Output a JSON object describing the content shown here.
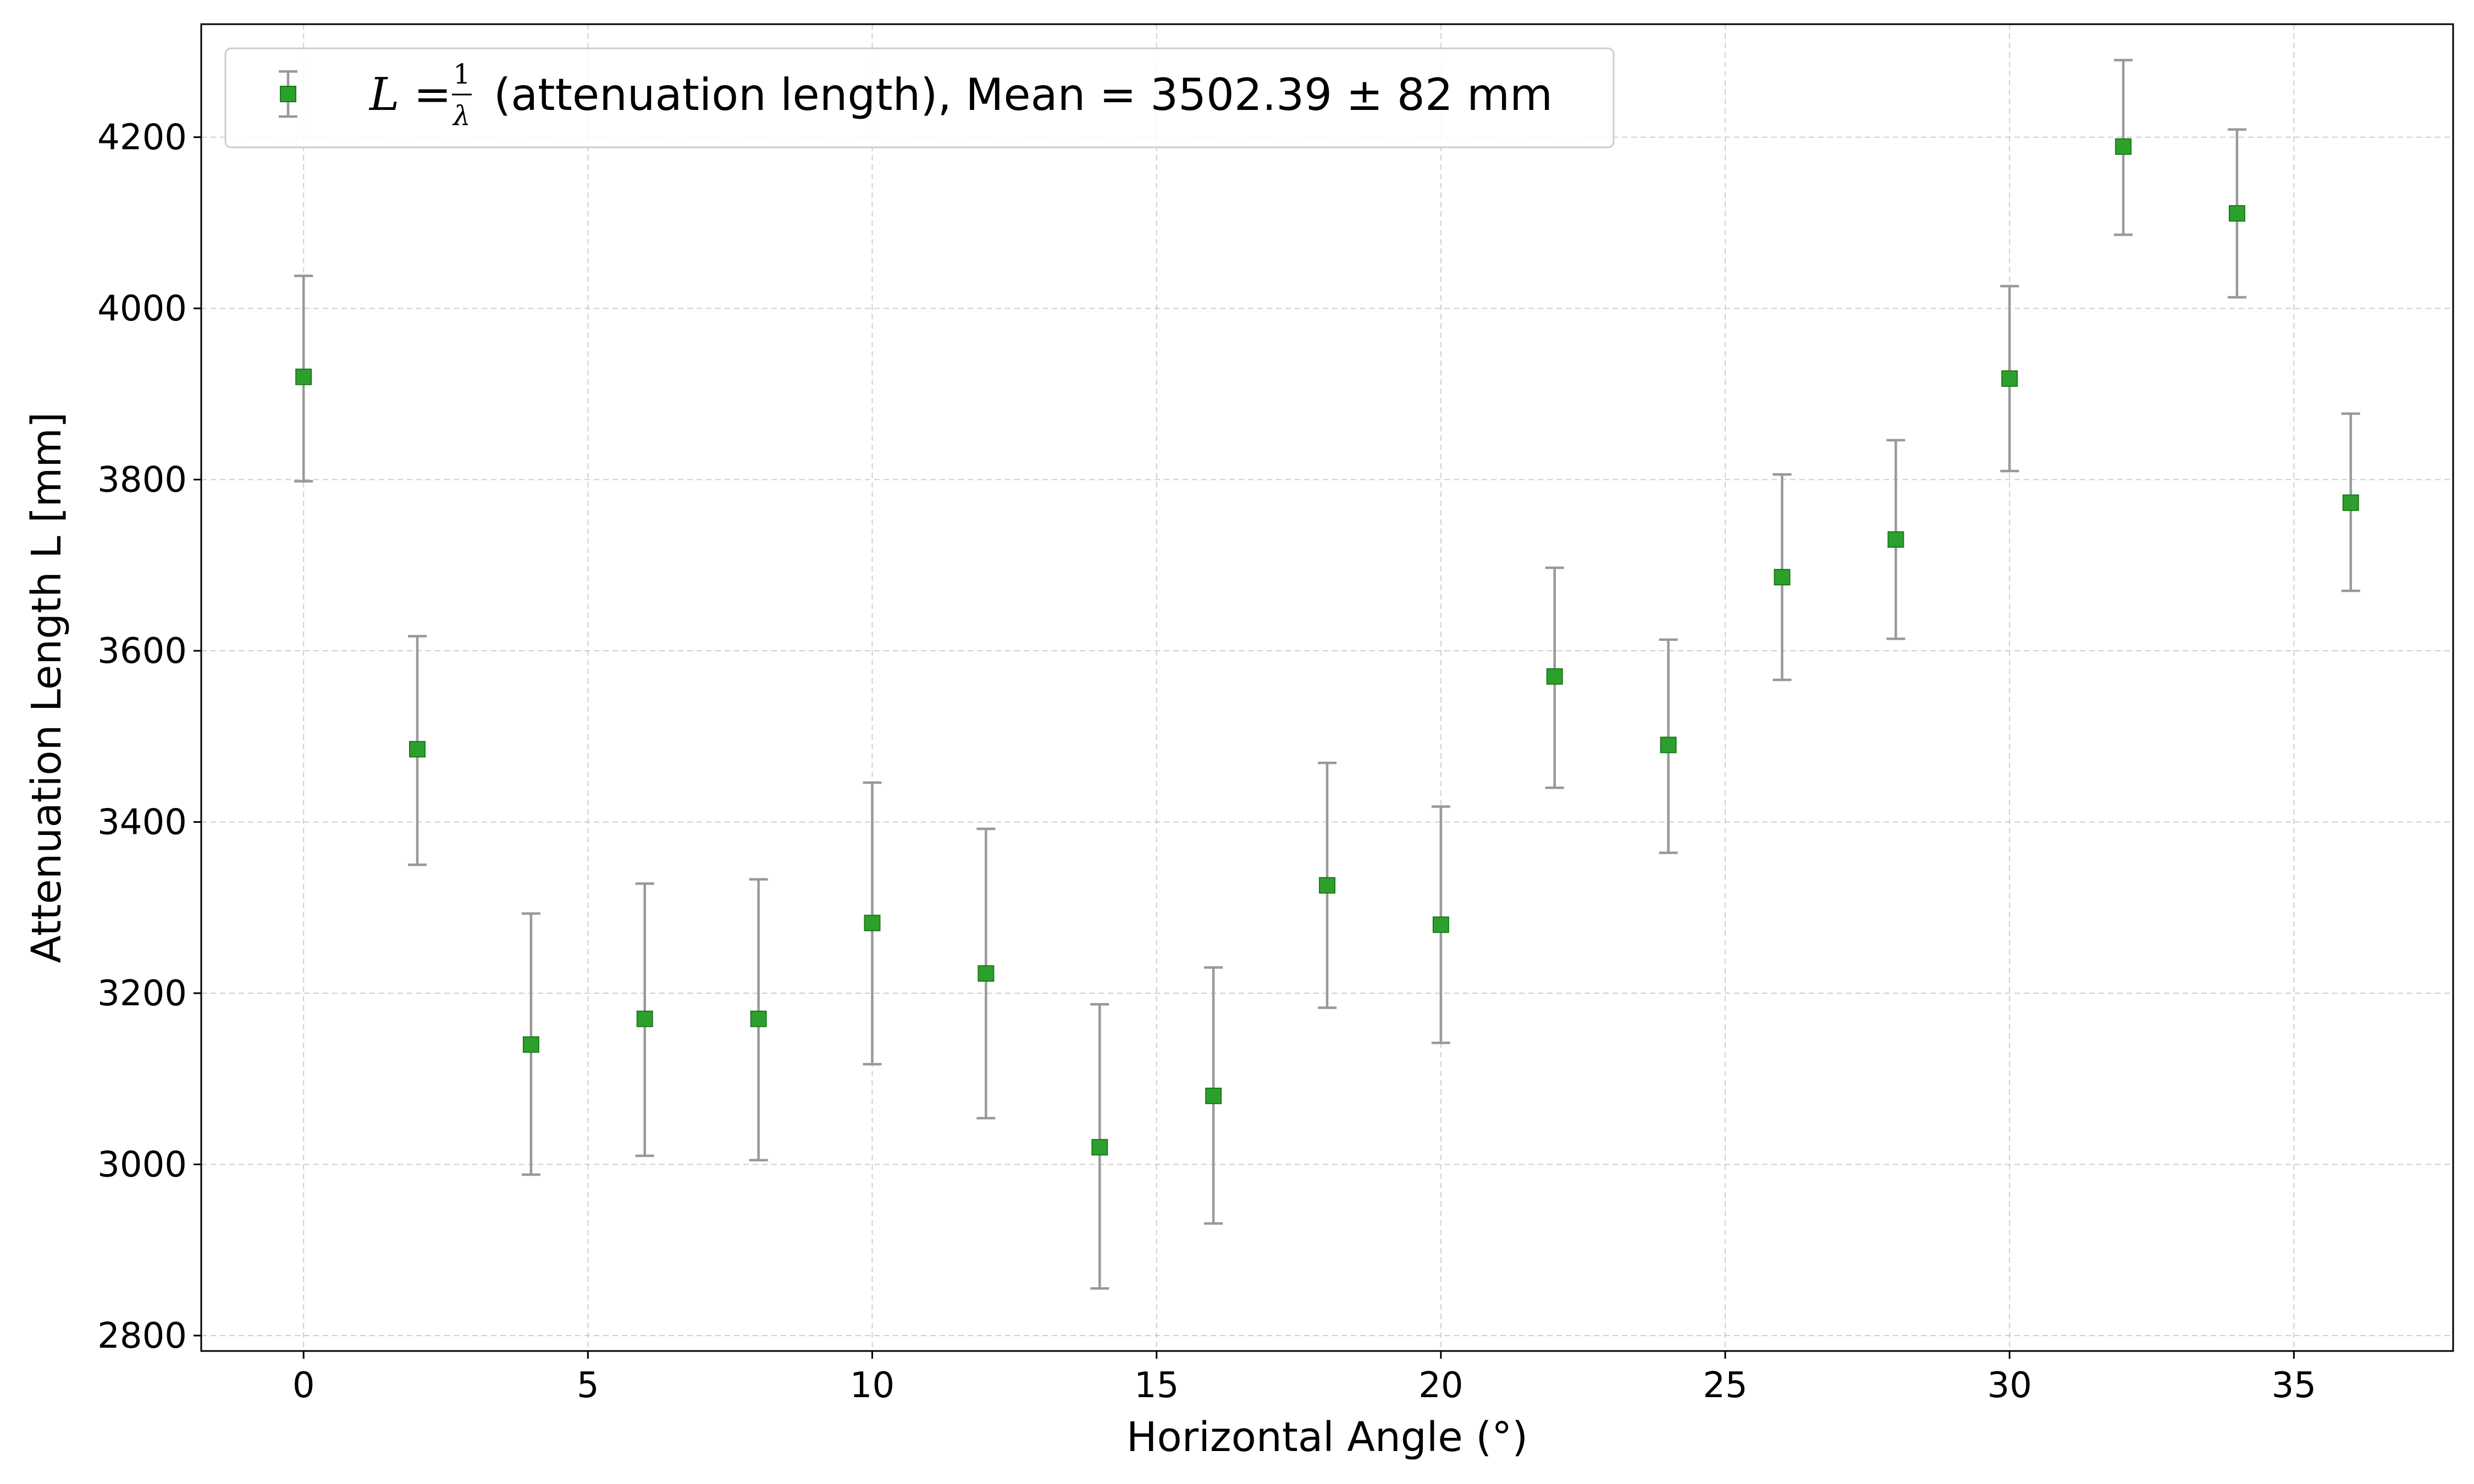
{
  "chart_data": {
    "type": "scatter",
    "xlabel": "Horizontal Angle (°)",
    "ylabel": "Attenuation Length L [mm]",
    "xlim": [
      -1.8,
      37.8
    ],
    "ylim": [
      2782,
      4332
    ],
    "xticks": [
      0,
      5,
      10,
      15,
      20,
      25,
      30,
      35
    ],
    "yticks": [
      2800,
      3000,
      3200,
      3400,
      3600,
      3800,
      4000,
      4200
    ],
    "grid": true,
    "legend_position": "top-left",
    "series": [
      {
        "name_math_lhs": "L =",
        "name_frac_num": "1",
        "name_frac_den": "λ",
        "name_text": "(attenuation length), Mean = 3502.39 ± 82 mm",
        "marker": "square",
        "marker_color": "#2ca02c",
        "errorbar_color": "#999999",
        "points": [
          {
            "x": 0,
            "y": 3920,
            "ylo": 3798,
            "yhi": 4038
          },
          {
            "x": 2,
            "y": 3485,
            "ylo": 3350,
            "yhi": 3617
          },
          {
            "x": 4,
            "y": 3140,
            "ylo": 2988,
            "yhi": 3293
          },
          {
            "x": 6,
            "y": 3170,
            "ylo": 3010,
            "yhi": 3328
          },
          {
            "x": 8,
            "y": 3170,
            "ylo": 3005,
            "yhi": 3333
          },
          {
            "x": 10,
            "y": 3282,
            "ylo": 3117,
            "yhi": 3446
          },
          {
            "x": 12,
            "y": 3223,
            "ylo": 3054,
            "yhi": 3392
          },
          {
            "x": 14,
            "y": 3020,
            "ylo": 2855,
            "yhi": 3187
          },
          {
            "x": 16,
            "y": 3080,
            "ylo": 2931,
            "yhi": 3230
          },
          {
            "x": 18,
            "y": 3326,
            "ylo": 3183,
            "yhi": 3469
          },
          {
            "x": 20,
            "y": 3280,
            "ylo": 3142,
            "yhi": 3418
          },
          {
            "x": 22,
            "y": 3570,
            "ylo": 3440,
            "yhi": 3697
          },
          {
            "x": 24,
            "y": 3490,
            "ylo": 3364,
            "yhi": 3613
          },
          {
            "x": 26,
            "y": 3686,
            "ylo": 3566,
            "yhi": 3806
          },
          {
            "x": 28,
            "y": 3730,
            "ylo": 3614,
            "yhi": 3846
          },
          {
            "x": 30,
            "y": 3918,
            "ylo": 3810,
            "yhi": 4026
          },
          {
            "x": 32,
            "y": 4189,
            "ylo": 4086,
            "yhi": 4290
          },
          {
            "x": 34,
            "y": 4111,
            "ylo": 4013,
            "yhi": 4209
          },
          {
            "x": 36,
            "y": 3773,
            "ylo": 3670,
            "yhi": 3877
          }
        ]
      }
    ]
  }
}
